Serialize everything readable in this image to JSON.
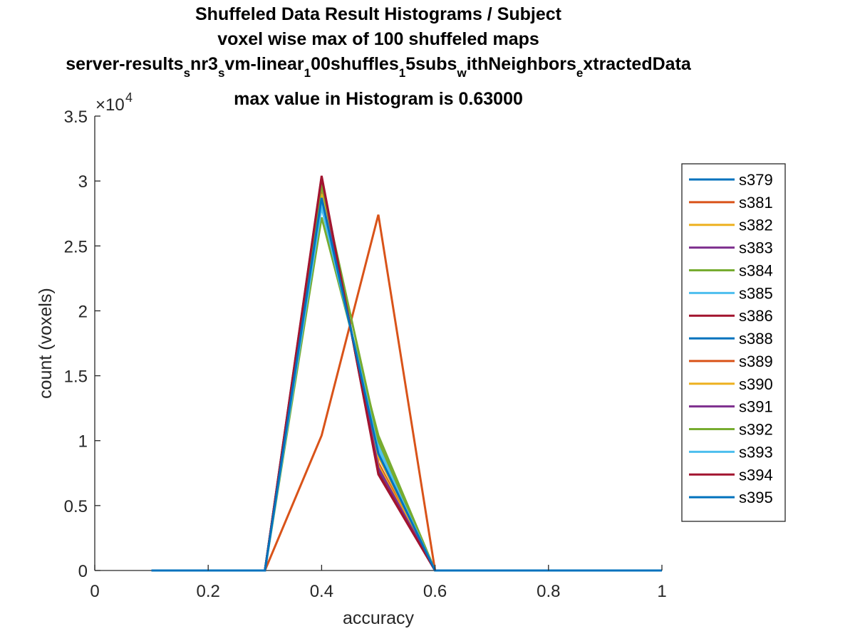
{
  "chart_data": {
    "type": "line",
    "title_lines": [
      "Shuffeled Data Result Histograms / Subject",
      "voxel wise max of 100 shuffeled maps",
      "server-results",
      "max value in Histogram is 0.63000"
    ],
    "title_path_segments": [
      {
        "text": "server-results",
        "sub": false
      },
      {
        "text": "s",
        "sub": true
      },
      {
        "text": "nr3",
        "sub": false
      },
      {
        "text": "s",
        "sub": true
      },
      {
        "text": "vm-linear",
        "sub": false
      },
      {
        "text": "1",
        "sub": true
      },
      {
        "text": "00shuffles",
        "sub": false
      },
      {
        "text": "1",
        "sub": true
      },
      {
        "text": "5subs",
        "sub": false
      },
      {
        "text": "w",
        "sub": true
      },
      {
        "text": "ithNeighbors",
        "sub": false
      },
      {
        "text": "e",
        "sub": true
      },
      {
        "text": "xtractedData",
        "sub": false
      }
    ],
    "xlabel": "accuracy",
    "ylabel": "count (voxels)",
    "xlim": [
      0,
      1
    ],
    "ylim": [
      0,
      35000
    ],
    "x_ticks": [
      0,
      0.2,
      0.4,
      0.6,
      0.8,
      1
    ],
    "x_tick_labels": [
      "0",
      "0.2",
      "0.4",
      "0.6",
      "0.8",
      "1"
    ],
    "y_ticks": [
      0,
      5000,
      10000,
      15000,
      20000,
      25000,
      30000,
      35000
    ],
    "y_tick_labels": [
      "0",
      "0.5",
      "1",
      "1.5",
      "2",
      "2.5",
      "3",
      "3.5"
    ],
    "y_exponent_base": "×10",
    "y_exponent_power": "4",
    "grid": false,
    "legend_position": "right",
    "x": [
      0.1,
      0.2,
      0.3,
      0.4,
      0.5,
      0.6,
      0.7,
      0.8,
      0.9,
      1.0
    ],
    "series": [
      {
        "name": "s379",
        "color": "#0072BD",
        "values": [
          0,
          0,
          0,
          30000,
          8000,
          0,
          0,
          0,
          0,
          0
        ]
      },
      {
        "name": "s381",
        "color": "#D95319",
        "values": [
          0,
          0,
          0,
          29500,
          8300,
          0,
          0,
          0,
          0,
          0
        ]
      },
      {
        "name": "s382",
        "color": "#EDB120",
        "values": [
          0,
          0,
          0,
          29700,
          8100,
          0,
          0,
          0,
          0,
          0
        ]
      },
      {
        "name": "s383",
        "color": "#7E2F8E",
        "values": [
          0,
          0,
          0,
          30100,
          7800,
          0,
          0,
          0,
          0,
          0
        ]
      },
      {
        "name": "s384",
        "color": "#77AC30",
        "values": [
          0,
          0,
          0,
          27200,
          10400,
          0,
          0,
          0,
          0,
          0
        ]
      },
      {
        "name": "s385",
        "color": "#4DBEEE",
        "values": [
          0,
          0,
          0,
          28000,
          9700,
          0,
          0,
          0,
          0,
          0
        ]
      },
      {
        "name": "s386",
        "color": "#A2142F",
        "values": [
          0,
          0,
          0,
          30400,
          7400,
          0,
          0,
          0,
          0,
          0
        ]
      },
      {
        "name": "s388",
        "color": "#0072BD",
        "values": [
          0,
          0,
          0,
          30200,
          7600,
          0,
          0,
          0,
          0,
          0
        ]
      },
      {
        "name": "s389",
        "color": "#D95319",
        "values": [
          0,
          0,
          0,
          10400,
          27400,
          0,
          0,
          0,
          0,
          0
        ]
      },
      {
        "name": "s390",
        "color": "#EDB120",
        "values": [
          0,
          0,
          0,
          29000,
          8800,
          0,
          0,
          0,
          0,
          0
        ]
      },
      {
        "name": "s391",
        "color": "#7E2F8E",
        "values": [
          0,
          0,
          0,
          29900,
          7900,
          0,
          0,
          0,
          0,
          0
        ]
      },
      {
        "name": "s392",
        "color": "#77AC30",
        "values": [
          0,
          0,
          0,
          29700,
          10000,
          0,
          0,
          0,
          0,
          0
        ]
      },
      {
        "name": "s393",
        "color": "#4DBEEE",
        "values": [
          0,
          0,
          0,
          28500,
          9300,
          0,
          0,
          0,
          0,
          0
        ]
      },
      {
        "name": "s394",
        "color": "#A2142F",
        "values": [
          0,
          0,
          0,
          30300,
          7500,
          0,
          0,
          0,
          0,
          0
        ]
      },
      {
        "name": "s395",
        "color": "#0072BD",
        "values": [
          0,
          0,
          0,
          28700,
          9000,
          0,
          0,
          0,
          0,
          0
        ]
      }
    ]
  }
}
